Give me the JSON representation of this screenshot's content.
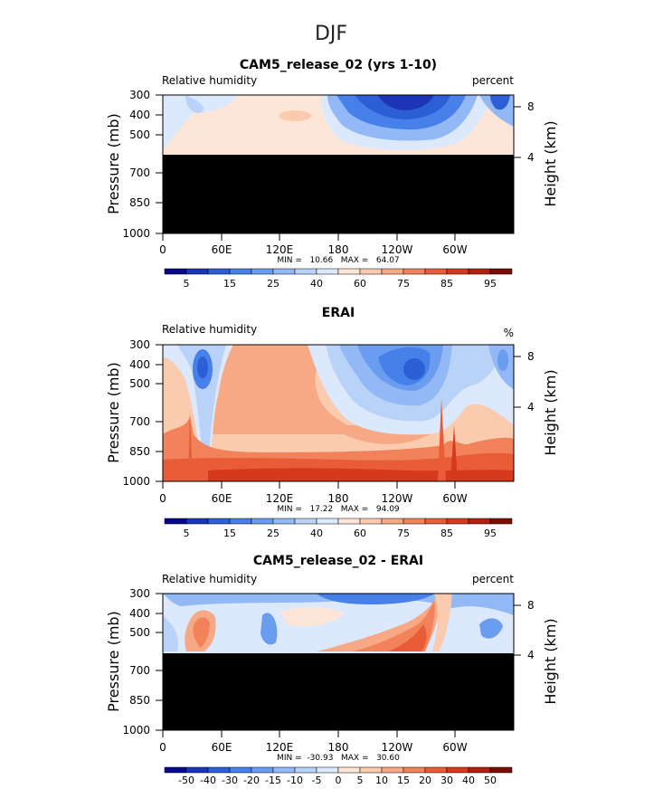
{
  "figure_title": "DJF",
  "chart_data": [
    {
      "type": "heatmap",
      "title": "CAM5_release_02 (yrs 1-10)",
      "left_label": "Relative humidity",
      "right_label": "percent",
      "ylabel": "Pressure (mb)",
      "right_axis_label": "Height (km)",
      "pressure_ticks": [
        "300",
        "400",
        "500",
        "700",
        "850",
        "1000"
      ],
      "height_ticks": [
        "8",
        "4"
      ],
      "lon_ticks": [
        "0",
        "60E",
        "120E",
        "180",
        "120W",
        "60W"
      ],
      "stats": "MIN =   10.66   MAX =   64.07",
      "masked_below_mb": 600,
      "colorbar_labels": [
        "5",
        "15",
        "25",
        "40",
        "60",
        "75",
        "85",
        "95"
      ]
    },
    {
      "type": "heatmap",
      "title": "ERAI",
      "left_label": "Relative humidity",
      "right_label": "%",
      "ylabel": "Pressure (mb)",
      "right_axis_label": "Height (km)",
      "pressure_ticks": [
        "300",
        "400",
        "500",
        "700",
        "850",
        "1000"
      ],
      "height_ticks": [
        "8",
        "4"
      ],
      "lon_ticks": [
        "0",
        "60E",
        "120E",
        "180",
        "120W",
        "60W"
      ],
      "stats": "MIN =   17.22   MAX =   94.09",
      "masked_below_mb": null,
      "colorbar_labels": [
        "5",
        "15",
        "25",
        "40",
        "60",
        "75",
        "85",
        "95"
      ]
    },
    {
      "type": "heatmap",
      "title": "CAM5_release_02 - ERAI",
      "left_label": "Relative humidity",
      "right_label": "percent",
      "ylabel": "Pressure (mb)",
      "right_axis_label": "Height (km)",
      "pressure_ticks": [
        "300",
        "400",
        "500",
        "700",
        "850",
        "1000"
      ],
      "height_ticks": [
        "8",
        "4"
      ],
      "lon_ticks": [
        "0",
        "60E",
        "120E",
        "180",
        "120W",
        "60W"
      ],
      "stats": "MIN =  -30.93   MAX =   30.60",
      "masked_below_mb": 600,
      "colorbar_labels": [
        "-50",
        "-40",
        "-30",
        "-20",
        "-15",
        "-10",
        "-5",
        "0",
        "5",
        "10",
        "15",
        "20",
        "30",
        "40",
        "50"
      ]
    }
  ],
  "colors": {
    "scale16": [
      "#08088c",
      "#1c34b8",
      "#2c5ed6",
      "#4680e8",
      "#6a9cf0",
      "#92b8f5",
      "#b8d2f8",
      "#dce8fb",
      "#fde6d8",
      "#fbcbb0",
      "#f6a984",
      "#f1825a",
      "#e85c38",
      "#d63a1e",
      "#b0200e",
      "#7a0c04"
    ],
    "mask": "#000000"
  }
}
